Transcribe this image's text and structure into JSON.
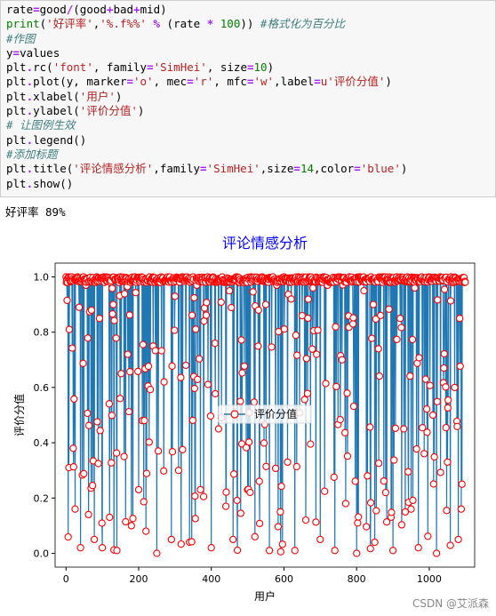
{
  "code_cell": {
    "lines": [
      "rate=good/(good+bad+mid)",
      "print('好评率','%.f%%' % (rate * 100)) #格式化为百分比",
      "#作图",
      "y=values",
      "plt.rc('font', family='SimHei', size=10)",
      "plt.plot(y, marker='o', mec='r', mfc='w',label=u'评价分值')",
      "plt.xlabel('用户')",
      "plt.ylabel('评价分值')",
      "# 让图例生效",
      "plt.legend()",
      "#添加标题",
      "plt.title('评论情感分析',family='SimHei',size=14,color='blue')",
      "plt.show()"
    ]
  },
  "output": {
    "text": "好评率 89%"
  },
  "chart_data": {
    "type": "line",
    "title": "评论情感分析",
    "title_color": "#0000ff",
    "xlabel": "用户",
    "ylabel": "评价分值",
    "xlim": [
      -30,
      1125
    ],
    "ylim": [
      -0.05,
      1.05
    ],
    "xticks": [
      0,
      200,
      400,
      600,
      800,
      1000
    ],
    "yticks": [
      0.0,
      0.2,
      0.4,
      0.6,
      0.8,
      1.0
    ],
    "ytick_labels": [
      "0.0",
      "0.2",
      "0.4",
      "0.6",
      "0.8",
      "1.0"
    ],
    "legend": {
      "label": "评价分值",
      "placement": "center"
    },
    "line_color": "#1f77b4",
    "marker_edge_color": "#ff0000",
    "marker_face_color": "#ffffff",
    "n_points": 1100,
    "series": [
      {
        "name": "评价分值",
        "approx_values_note_x": [
          0,
          8,
          16,
          20,
          25,
          32,
          36,
          40,
          48,
          55,
          62,
          70,
          78,
          85,
          92,
          100,
          110,
          120,
          130,
          140,
          150,
          160,
          170,
          180,
          190,
          200,
          210,
          220,
          230,
          240,
          250,
          260,
          270,
          280,
          290,
          300,
          310,
          320,
          330,
          340,
          350,
          360,
          370,
          380,
          390,
          400,
          410,
          420,
          430,
          440,
          450,
          460,
          470,
          480,
          490,
          500,
          510,
          520,
          530,
          540,
          550,
          560,
          570,
          580,
          590,
          600,
          610,
          620,
          630,
          640,
          650,
          660,
          670,
          680,
          690,
          700,
          710,
          720,
          730,
          740,
          750,
          760,
          770,
          780,
          790,
          800,
          810,
          820,
          830,
          840,
          850,
          860,
          870,
          880,
          890,
          900,
          910,
          920,
          930,
          940,
          950,
          960,
          970,
          980,
          990,
          1000,
          1010,
          1020,
          1030,
          1040,
          1050,
          1060,
          1070,
          1080,
          1090
        ],
        "approx_values_note_y": [
          1.0,
          0.31,
          1.0,
          0.38,
          0.16,
          1.0,
          0.89,
          0.02,
          1.0,
          0.97,
          0.14,
          0.88,
          0.05,
          1.0,
          0.85,
          0.02,
          1.0,
          0.13,
          0.9,
          0.01,
          1.0,
          0.35,
          0.72,
          0.1,
          1.0,
          0.23,
          0.48,
          0.08,
          1.0,
          0.75,
          0.0,
          0.98,
          0.62,
          1.0,
          0.05,
          0.93,
          0.3,
          1.0,
          0.68,
          0.04,
          1.0,
          0.97,
          0.23,
          0.84,
          1.0,
          0.02,
          0.76,
          0.45,
          1.0,
          0.17,
          0.95,
          0.05,
          1.0,
          0.55,
          0.98,
          0.23,
          1.0,
          0.06,
          0.88,
          1.0,
          0.9,
          0.01,
          1.0,
          0.97,
          0.15,
          1.0,
          0.33,
          0.92,
          0.01,
          1.0,
          0.86,
          0.12,
          1.0,
          0.96,
          0.72,
          0.05,
          1.0,
          0.97,
          0.98,
          0.01,
          1.0,
          0.7,
          0.18,
          1.0,
          0.83,
          0.0,
          1.0,
          0.95,
          0.28,
          1.0,
          0.04,
          0.74,
          1.0,
          0.22,
          0.98,
          0.01,
          1.0,
          0.85,
          0.45,
          1.0,
          0.16,
          0.96,
          0.02,
          1.0,
          0.63,
          1.0,
          0.5,
          0.0,
          1.0,
          0.67,
          0.33,
          1.0,
          0.6,
          0.05,
          0.25
        ]
      }
    ]
  },
  "watermark": "CSDN @艾派森"
}
